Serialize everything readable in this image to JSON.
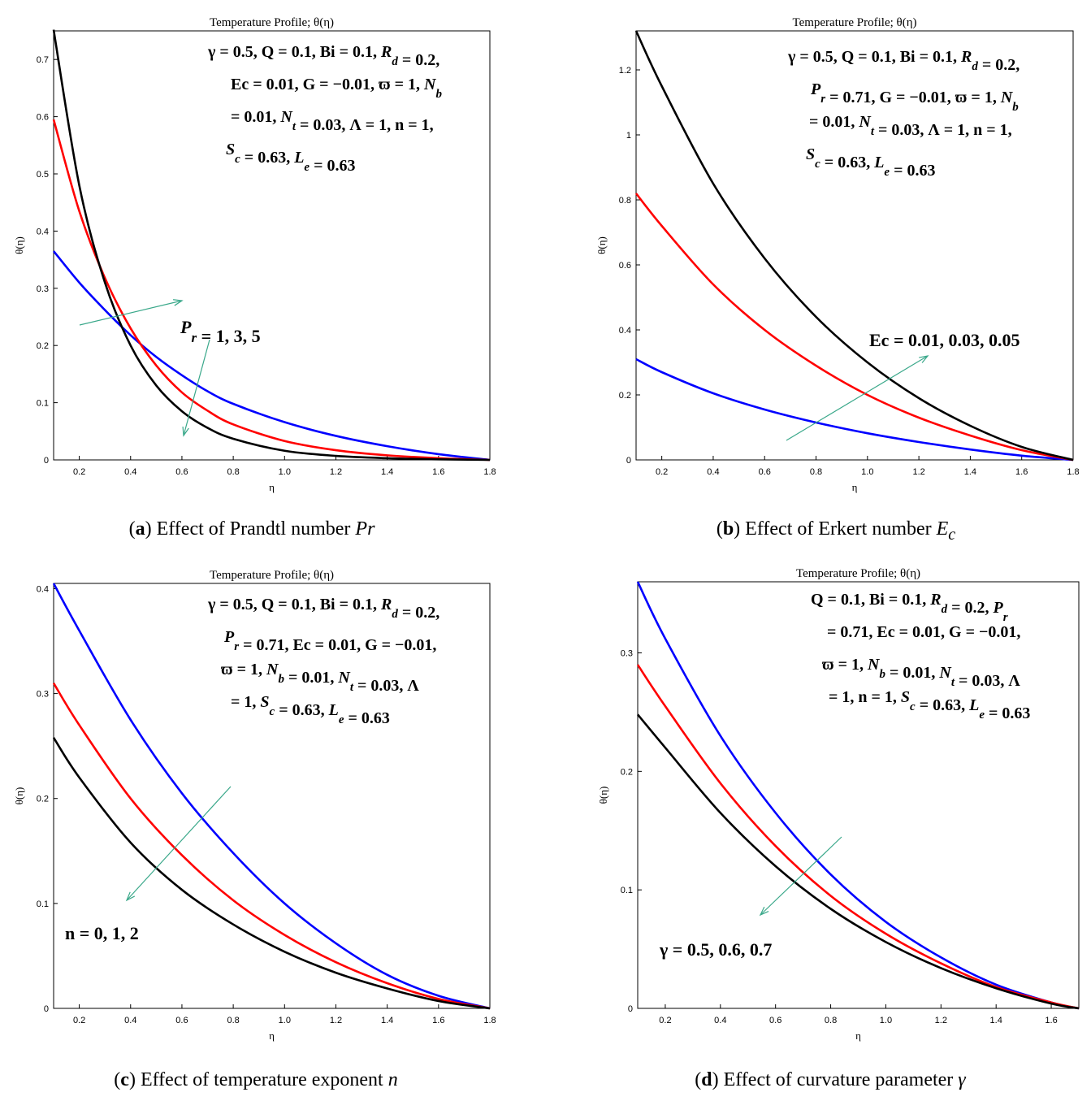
{
  "chart_data": [
    {
      "type": "line",
      "title": "Temperature Profile; θ(η)",
      "xlabel": "η",
      "ylabel": "θ(η)",
      "xlim": [
        0.1,
        1.8
      ],
      "ylim": [
        0,
        0.75
      ],
      "xticks": [
        "0.2",
        "0.4",
        "0.6",
        "0.8",
        "1.0",
        "1.2",
        "1.4",
        "1.6",
        "1.8"
      ],
      "xtick_values": [
        0.2,
        0.4,
        0.6,
        0.8,
        1.0,
        1.2,
        1.4,
        1.6,
        1.8
      ],
      "yticks": [
        "0",
        "0.1",
        "0.2",
        "0.3",
        "0.4",
        "0.5",
        "0.6",
        "0.7"
      ],
      "ytick_values": [
        0,
        0.1,
        0.2,
        0.3,
        0.4,
        0.5,
        0.6,
        0.7
      ],
      "annotation_lines": [
        "γ = 0.5, Q = 0.1, Bi = 0.1, R_d = 0.2,",
        "Ec = 0.01, G = −0.01, ϖ = 1, N_b",
        "= 0.01, N_t = 0.03, Λ = 1, n = 1,",
        "S_c = 0.63, L_e = 0.63"
      ],
      "param_label": "P_r = 1, 3, 5",
      "series": [
        {
          "color": "#0000ff",
          "x": [
            0.1,
            0.2,
            0.3,
            0.4,
            0.5,
            0.6,
            0.7,
            0.8,
            1.0,
            1.2,
            1.4,
            1.6,
            1.8
          ],
          "y": [
            0.365,
            0.31,
            0.262,
            0.218,
            0.18,
            0.148,
            0.12,
            0.098,
            0.066,
            0.042,
            0.024,
            0.01,
            0
          ]
        },
        {
          "color": "#ff0000",
          "x": [
            0.1,
            0.2,
            0.3,
            0.4,
            0.5,
            0.6,
            0.7,
            0.8,
            1.0,
            1.2,
            1.4,
            1.6,
            1.8
          ],
          "y": [
            0.595,
            0.435,
            0.318,
            0.23,
            0.165,
            0.118,
            0.086,
            0.062,
            0.033,
            0.017,
            0.008,
            0.003,
            0
          ]
        },
        {
          "color": "#000000",
          "x": [
            0.1,
            0.2,
            0.3,
            0.4,
            0.5,
            0.6,
            0.7,
            0.8,
            1.0,
            1.2,
            1.4,
            1.6,
            1.8
          ],
          "y": [
            0.752,
            0.48,
            0.31,
            0.2,
            0.13,
            0.085,
            0.056,
            0.037,
            0.016,
            0.007,
            0.003,
            0.001,
            0
          ]
        }
      ]
    },
    {
      "type": "line",
      "title": "Temperature Profile; θ(η)",
      "xlabel": "η",
      "ylabel": "θ(η)",
      "xlim": [
        0.1,
        1.8
      ],
      "ylim": [
        0,
        1.32
      ],
      "xticks": [
        "0.2",
        "0.4",
        "0.6",
        "0.8",
        "1.0",
        "1.2",
        "1.4",
        "1.6",
        "1.8"
      ],
      "xtick_values": [
        0.2,
        0.4,
        0.6,
        0.8,
        1.0,
        1.2,
        1.4,
        1.6,
        1.8
      ],
      "yticks": [
        "0",
        "0.2",
        "0.4",
        "0.6",
        "0.8",
        "1",
        "1.2"
      ],
      "ytick_values": [
        0,
        0.2,
        0.4,
        0.6,
        0.8,
        1.0,
        1.2
      ],
      "annotation_lines": [
        "γ = 0.5, Q = 0.1, Bi = 0.1, R_d = 0.2,",
        "P_r = 0.71, G = −0.01, ϖ = 1, N_b",
        "= 0.01, N_t = 0.03, Λ = 1, n = 1,",
        "S_c = 0.63, L_e = 0.63"
      ],
      "param_label": "Ec = 0.01, 0.03, 0.05",
      "series": [
        {
          "color": "#0000ff",
          "x": [
            0.1,
            0.2,
            0.4,
            0.6,
            0.8,
            1.0,
            1.2,
            1.4,
            1.6,
            1.8
          ],
          "y": [
            0.31,
            0.27,
            0.205,
            0.155,
            0.115,
            0.082,
            0.055,
            0.032,
            0.013,
            0
          ]
        },
        {
          "color": "#ff0000",
          "x": [
            0.1,
            0.2,
            0.4,
            0.6,
            0.8,
            1.0,
            1.2,
            1.4,
            1.6,
            1.8
          ],
          "y": [
            0.82,
            0.72,
            0.54,
            0.4,
            0.29,
            0.2,
            0.13,
            0.075,
            0.03,
            0
          ]
        },
        {
          "color": "#000000",
          "x": [
            0.1,
            0.2,
            0.4,
            0.6,
            0.8,
            1.0,
            1.2,
            1.4,
            1.6,
            1.8
          ],
          "y": [
            1.32,
            1.15,
            0.85,
            0.62,
            0.44,
            0.3,
            0.19,
            0.105,
            0.04,
            0
          ]
        }
      ]
    },
    {
      "type": "line",
      "title": "Temperature Profile; θ(η)",
      "xlabel": "η",
      "ylabel": "θ(η)",
      "xlim": [
        0.1,
        1.8
      ],
      "ylim": [
        0,
        0.405
      ],
      "xticks": [
        "0.2",
        "0.4",
        "0.6",
        "0.8",
        "1.0",
        "1.2",
        "1.4",
        "1.6",
        "1.8"
      ],
      "xtick_values": [
        0.2,
        0.4,
        0.6,
        0.8,
        1.0,
        1.2,
        1.4,
        1.6,
        1.8
      ],
      "yticks": [
        "0",
        "0.1",
        "0.2",
        "0.3",
        "0.4"
      ],
      "ytick_values": [
        0,
        0.1,
        0.2,
        0.3,
        0.4
      ],
      "annotation_lines": [
        "γ = 0.5, Q = 0.1, Bi = 0.1, R_d = 0.2,",
        "P_r = 0.71, Ec = 0.01, G = −0.01,",
        "ϖ = 1, N_b = 0.01, N_t = 0.03, Λ",
        "= 1, S_c = 0.63, L_e = 0.63"
      ],
      "param_label": "n = 0, 1, 2",
      "series": [
        {
          "color": "#0000ff",
          "x": [
            0.1,
            0.2,
            0.4,
            0.6,
            0.8,
            1.0,
            1.2,
            1.4,
            1.6,
            1.8
          ],
          "y": [
            0.405,
            0.36,
            0.275,
            0.205,
            0.148,
            0.1,
            0.062,
            0.032,
            0.012,
            0
          ]
        },
        {
          "color": "#ff0000",
          "x": [
            0.1,
            0.2,
            0.4,
            0.6,
            0.8,
            1.0,
            1.2,
            1.4,
            1.6,
            1.8
          ],
          "y": [
            0.31,
            0.27,
            0.2,
            0.146,
            0.103,
            0.07,
            0.044,
            0.024,
            0.009,
            0
          ]
        },
        {
          "color": "#000000",
          "x": [
            0.1,
            0.2,
            0.4,
            0.6,
            0.8,
            1.0,
            1.2,
            1.4,
            1.6,
            1.8
          ],
          "y": [
            0.258,
            0.22,
            0.158,
            0.113,
            0.08,
            0.054,
            0.034,
            0.019,
            0.007,
            0
          ]
        }
      ]
    },
    {
      "type": "line",
      "title": "Temperature Profile; θ(η)",
      "xlabel": "η",
      "ylabel": "θ(η)",
      "xlim": [
        0.1,
        1.7
      ],
      "ylim": [
        0,
        0.36
      ],
      "xticks": [
        "0.2",
        "0.4",
        "0.6",
        "0.8",
        "1.0",
        "1.2",
        "1.4",
        "1.6"
      ],
      "xtick_values": [
        0.2,
        0.4,
        0.6,
        0.8,
        1.0,
        1.2,
        1.4,
        1.6
      ],
      "yticks": [
        "0",
        "0.1",
        "0.2",
        "0.3"
      ],
      "ytick_values": [
        0,
        0.1,
        0.2,
        0.3
      ],
      "annotation_lines": [
        "Q = 0.1, Bi = 0.1, R_d = 0.2, P_r",
        "= 0.71, Ec = 0.01, G = −0.01,",
        "ϖ = 1, N_b = 0.01, N_t = 0.03, Λ",
        "= 1, n = 1, S_c = 0.63, L_e = 0.63"
      ],
      "param_label": "γ = 0.5, 0.6, 0.7",
      "series": [
        {
          "color": "#0000ff",
          "x": [
            0.1,
            0.2,
            0.4,
            0.6,
            0.8,
            1.0,
            1.2,
            1.4,
            1.6,
            1.7
          ],
          "y": [
            0.36,
            0.312,
            0.23,
            0.165,
            0.113,
            0.073,
            0.043,
            0.02,
            0.005,
            0
          ]
        },
        {
          "color": "#ff0000",
          "x": [
            0.1,
            0.2,
            0.4,
            0.6,
            0.8,
            1.0,
            1.2,
            1.4,
            1.6,
            1.7
          ],
          "y": [
            0.29,
            0.255,
            0.19,
            0.137,
            0.095,
            0.063,
            0.038,
            0.018,
            0.005,
            0
          ]
        },
        {
          "color": "#000000",
          "x": [
            0.1,
            0.2,
            0.4,
            0.6,
            0.8,
            1.0,
            1.2,
            1.4,
            1.6,
            1.7
          ],
          "y": [
            0.248,
            0.22,
            0.165,
            0.12,
            0.084,
            0.056,
            0.034,
            0.017,
            0.004,
            0
          ]
        }
      ]
    }
  ],
  "captions": [
    {
      "letter": "a",
      "text": " Effect of Prandtl number ",
      "sym": "Pr",
      "sub": ""
    },
    {
      "letter": "b",
      "text": " Effect of Erkert number ",
      "sym": "E",
      "sub": "c"
    },
    {
      "letter": "c",
      "text": " Effect of temperature exponent ",
      "sym": "n",
      "sub": ""
    },
    {
      "letter": "d",
      "text": " Effect of curvature parameter ",
      "sym": "γ",
      "sub": ""
    }
  ]
}
